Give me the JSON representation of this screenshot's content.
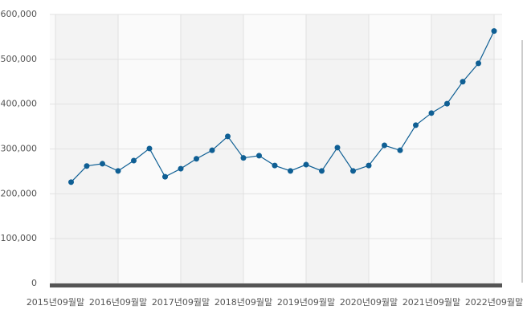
{
  "chart_data": {
    "type": "line",
    "categories": [
      "2015년09월말",
      null,
      null,
      null,
      "2016년09월말",
      null,
      null,
      null,
      "2017년09월말",
      null,
      null,
      null,
      "2018년09월말",
      null,
      null,
      null,
      "2019년09월말",
      null,
      null,
      null,
      "2020년09월말",
      null,
      null,
      null,
      "2021년09월말",
      null,
      null,
      null,
      "2022년09월말"
    ],
    "series": [
      {
        "color": "#0f5f94",
        "values": [
          null,
          226000,
          262000,
          267000,
          251000,
          274000,
          301000,
          238000,
          256000,
          278000,
          297000,
          328000,
          280000,
          285000,
          263000,
          251000,
          265000,
          251000,
          303000,
          251000,
          263000,
          308000,
          297000,
          353000,
          380000,
          401000,
          450000,
          491000,
          563000
        ]
      }
    ],
    "ylim": [
      0,
      600000
    ],
    "yticks": [
      0,
      {
        "value": 100000,
        "label": "100,000"
      },
      {
        "value": 200000,
        "label": "200,000"
      },
      {
        "value": 300000,
        "label": "300,000"
      },
      {
        "value": 400000,
        "label": "400,000"
      },
      {
        "value": 500000,
        "label": "500,000"
      },
      {
        "value": 600000,
        "label": "600,000"
      }
    ],
    "grid": true
  }
}
